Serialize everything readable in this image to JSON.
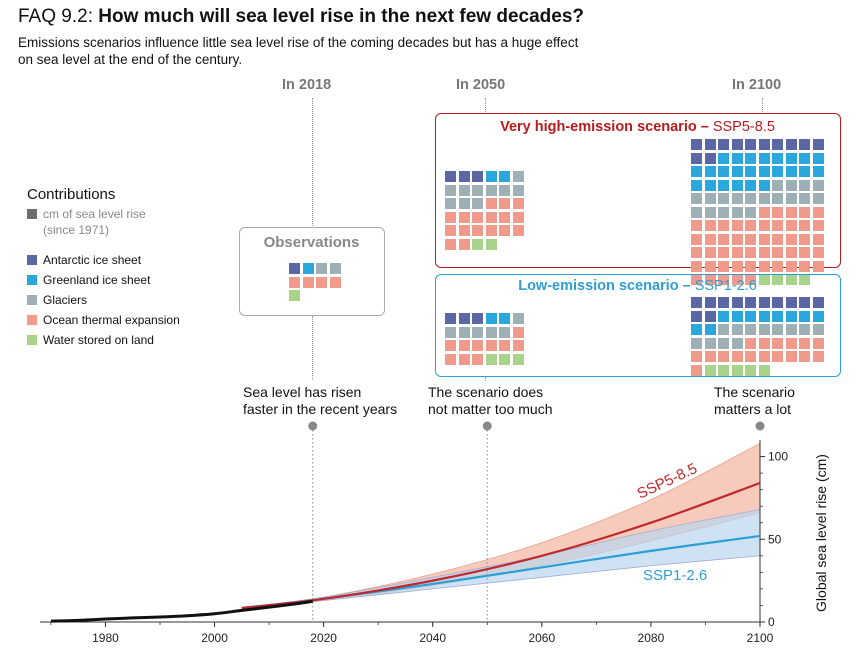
{
  "header": {
    "faq": "FAQ 9.2:",
    "question": "How much will sea level rise in the next few decades?",
    "subtitle_line1": "Emissions scenarios influence little sea level rise of the coming decades but has a huge effect",
    "subtitle_line2": "on sea level at the end of the century."
  },
  "years": {
    "y2018": "In 2018",
    "y2050": "In 2050",
    "y2100": "In 2100"
  },
  "legend": {
    "title": "Contributions",
    "unit_line1": "cm of sea level rise",
    "unit_line2": "(since 1971)",
    "items": [
      {
        "label": "Antarctic ice sheet",
        "color": "#5b67a5"
      },
      {
        "label": "Greenland ice sheet",
        "color": "#2aa8de"
      },
      {
        "label": "Glaciers",
        "color": "#9eb0b5"
      },
      {
        "label": "Ocean thermal expansion",
        "color": "#f09a8c"
      },
      {
        "label": "Water stored on land",
        "color": "#a9d38a"
      }
    ],
    "unit_color": "#6e6e6e"
  },
  "observations": {
    "title": "Observations",
    "cells": [
      "A",
      "G",
      "C",
      "C",
      "O",
      "O",
      "O",
      "O",
      "W"
    ]
  },
  "high": {
    "title_bold": "Very high-emission scenario –",
    "title_name": "SSP5-8.5",
    "color": "#b71c1c",
    "cells_2050": [
      "A",
      "A",
      "A",
      "G",
      "G",
      "C",
      "C",
      "C",
      "C",
      "C",
      "C",
      "C",
      "C",
      "C",
      "C",
      "O",
      "O",
      "O",
      "O",
      "O",
      "O",
      "O",
      "O",
      "O",
      "O",
      "O",
      "O",
      "O",
      "O",
      "O",
      "O",
      "O",
      "W",
      "W"
    ],
    "cells_2100": [
      "A",
      "A",
      "A",
      "A",
      "A",
      "A",
      "A",
      "A",
      "A",
      "A",
      "A",
      "A",
      "G",
      "G",
      "G",
      "G",
      "G",
      "G",
      "G",
      "G",
      "G",
      "G",
      "G",
      "G",
      "G",
      "G",
      "G",
      "G",
      "G",
      "G",
      "G",
      "G",
      "G",
      "G",
      "G",
      "G",
      "C",
      "C",
      "C",
      "C",
      "C",
      "C",
      "C",
      "C",
      "C",
      "C",
      "C",
      "C",
      "C",
      "C",
      "C",
      "C",
      "C",
      "C",
      "C",
      "O",
      "O",
      "O",
      "O",
      "O",
      "O",
      "O",
      "O",
      "O",
      "O",
      "O",
      "O",
      "O",
      "O",
      "O",
      "O",
      "O",
      "O",
      "O",
      "O",
      "O",
      "O",
      "O",
      "O",
      "O",
      "O",
      "O",
      "O",
      "O",
      "O",
      "O",
      "O",
      "O",
      "O",
      "O",
      "O",
      "O",
      "O",
      "O",
      "O",
      "O",
      "O",
      "O",
      "O",
      "O",
      "O",
      "O",
      "O",
      "O",
      "O",
      "W",
      "W",
      "W",
      "W"
    ]
  },
  "low": {
    "title_bold": "Low-emission scenario –",
    "title_name": "SSP1-2.6",
    "color": "#2e9fd6",
    "cells_2050": [
      "A",
      "A",
      "A",
      "G",
      "G",
      "C",
      "C",
      "C",
      "C",
      "C",
      "C",
      "O",
      "O",
      "O",
      "O",
      "O",
      "O",
      "O",
      "O",
      "O",
      "O",
      "W",
      "W",
      "W"
    ],
    "cells_2100": [
      "A",
      "A",
      "A",
      "A",
      "A",
      "A",
      "A",
      "A",
      "A",
      "A",
      "A",
      "A",
      "G",
      "G",
      "G",
      "G",
      "G",
      "G",
      "G",
      "G",
      "G",
      "G",
      "C",
      "C",
      "C",
      "C",
      "C",
      "C",
      "C",
      "C",
      "C",
      "C",
      "C",
      "C",
      "O",
      "O",
      "O",
      "O",
      "O",
      "O",
      "O",
      "O",
      "O",
      "O",
      "O",
      "O",
      "O",
      "O",
      "O",
      "O",
      "O",
      "W",
      "W",
      "W",
      "W",
      "W"
    ]
  },
  "notes": {
    "n2018_line1": "Sea level has risen",
    "n2018_line2": "faster in the recent years",
    "n2050_line1": "The scenario does",
    "n2050_line2": "not matter too much",
    "n2100_line1": "The scenario",
    "n2100_line2": "matters a lot"
  },
  "chart_data": {
    "type": "line",
    "ylabel": "Global sea level rise (cm)",
    "xlim": [
      1968,
      2100
    ],
    "ylim": [
      0,
      110
    ],
    "x_ticks": [
      1980,
      2000,
      2020,
      2040,
      2060,
      2080,
      2100
    ],
    "y_ticks": [
      0,
      50,
      100
    ],
    "series": [
      {
        "name": "SSP5-8.5",
        "color": "#c0282b",
        "band_color": "#f3b9a6",
        "x": [
          2005,
          2020,
          2040,
          2060,
          2080,
          2100
        ],
        "values": [
          8.5,
          14,
          25,
          40,
          60,
          84
        ],
        "lower": [
          8.5,
          13,
          22,
          34,
          49,
          66
        ],
        "upper": [
          8.5,
          15,
          29,
          48,
          74,
          108
        ]
      },
      {
        "name": "SSP1-2.6",
        "color": "#2e9fd6",
        "band_color": "#b9d6ee",
        "x": [
          2005,
          2020,
          2040,
          2060,
          2080,
          2100
        ],
        "values": [
          8.5,
          14,
          23,
          33,
          43,
          52
        ],
        "lower": [
          8.5,
          13,
          20,
          27,
          34,
          40
        ],
        "upper": [
          8.5,
          15,
          27,
          40,
          55,
          68
        ]
      },
      {
        "name": "Observations",
        "color": "#111111",
        "x": [
          1970,
          1975,
          1980,
          1985,
          1990,
          1995,
          2000,
          2005,
          2010,
          2015,
          2018
        ],
        "values": [
          0.5,
          1.0,
          1.8,
          2.5,
          3.0,
          3.8,
          5.0,
          7.0,
          9.0,
          11.0,
          12.5
        ]
      }
    ],
    "markers": [
      2018,
      2050,
      2100
    ]
  }
}
